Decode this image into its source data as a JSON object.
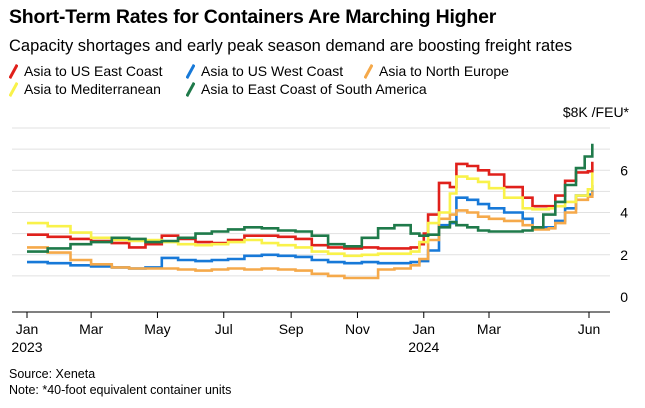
{
  "header": {
    "title": "Short-Term Rates for Containers Are Marching Higher",
    "subtitle": "Capacity shortages and early peak season demand are boosting freight rates"
  },
  "footer": {
    "source": "Source: Xeneta",
    "note": "Note: *40-foot equivalent container units"
  },
  "chart_data": {
    "type": "line",
    "unit_label": "$8K /FEU*",
    "x_ticks": [
      {
        "date": "2023-01-01",
        "label": "Jan",
        "year": "2023"
      },
      {
        "date": "2023-03-01",
        "label": "Mar",
        "year": ""
      },
      {
        "date": "2023-05-01",
        "label": "May",
        "year": ""
      },
      {
        "date": "2023-07-01",
        "label": "Jul",
        "year": ""
      },
      {
        "date": "2023-09-01",
        "label": "Sep",
        "year": ""
      },
      {
        "date": "2023-11-01",
        "label": "Nov",
        "year": ""
      },
      {
        "date": "2024-01-01",
        "label": "Jan",
        "year": "2024"
      },
      {
        "date": "2024-03-01",
        "label": "Mar",
        "year": ""
      },
      {
        "date": "2024-06-01",
        "label": "Jun",
        "year": ""
      }
    ],
    "y_ticks": [
      0,
      2,
      4,
      6
    ],
    "ylim": [
      0,
      8
    ],
    "xlim": [
      "2023-01-01",
      "2024-06-15"
    ],
    "y_axis_side": "right",
    "grid": "horizontal",
    "legend_placement": "top-left",
    "series": [
      {
        "name": "Asia to US East Coast",
        "color": "#e0201b",
        "points": [
          [
            "2023-01-01",
            2.95
          ],
          [
            "2023-01-20",
            2.85
          ],
          [
            "2023-02-10",
            2.75
          ],
          [
            "2023-03-01",
            2.65
          ],
          [
            "2023-03-20",
            2.55
          ],
          [
            "2023-04-05",
            2.35
          ],
          [
            "2023-04-20",
            2.5
          ],
          [
            "2023-05-05",
            2.9
          ],
          [
            "2023-05-20",
            2.75
          ],
          [
            "2023-06-05",
            2.6
          ],
          [
            "2023-06-20",
            2.55
          ],
          [
            "2023-07-05",
            2.7
          ],
          [
            "2023-07-20",
            2.9
          ],
          [
            "2023-08-05",
            2.9
          ],
          [
            "2023-08-20",
            2.85
          ],
          [
            "2023-09-05",
            2.75
          ],
          [
            "2023-09-20",
            2.45
          ],
          [
            "2023-10-05",
            2.35
          ],
          [
            "2023-10-20",
            2.3
          ],
          [
            "2023-11-05",
            2.35
          ],
          [
            "2023-11-20",
            2.3
          ],
          [
            "2023-12-05",
            2.3
          ],
          [
            "2023-12-20",
            2.35
          ],
          [
            "2023-12-28",
            2.5
          ],
          [
            "2024-01-01",
            3.0
          ],
          [
            "2024-01-05",
            3.9
          ],
          [
            "2024-01-15",
            5.4
          ],
          [
            "2024-01-25",
            5.2
          ],
          [
            "2024-01-31",
            6.3
          ],
          [
            "2024-02-10",
            6.2
          ],
          [
            "2024-02-20",
            6.0
          ],
          [
            "2024-03-01",
            5.8
          ],
          [
            "2024-03-15",
            5.2
          ],
          [
            "2024-04-01",
            4.7
          ],
          [
            "2024-04-10",
            4.3
          ],
          [
            "2024-04-25",
            4.3
          ],
          [
            "2024-05-01",
            4.8
          ],
          [
            "2024-05-10",
            5.5
          ],
          [
            "2024-05-20",
            5.9
          ],
          [
            "2024-05-31",
            5.95
          ],
          [
            "2024-06-04",
            6.4
          ]
        ]
      },
      {
        "name": "Asia to US West Coast",
        "color": "#1779d8",
        "points": [
          [
            "2023-01-01",
            1.65
          ],
          [
            "2023-01-20",
            1.6
          ],
          [
            "2023-02-10",
            1.5
          ],
          [
            "2023-03-01",
            1.45
          ],
          [
            "2023-03-20",
            1.4
          ],
          [
            "2023-04-05",
            1.35
          ],
          [
            "2023-04-20",
            1.4
          ],
          [
            "2023-05-05",
            1.85
          ],
          [
            "2023-05-20",
            1.75
          ],
          [
            "2023-06-05",
            1.7
          ],
          [
            "2023-06-20",
            1.75
          ],
          [
            "2023-07-05",
            1.8
          ],
          [
            "2023-07-20",
            1.95
          ],
          [
            "2023-08-05",
            2.0
          ],
          [
            "2023-08-20",
            1.95
          ],
          [
            "2023-09-05",
            1.9
          ],
          [
            "2023-09-20",
            1.75
          ],
          [
            "2023-10-05",
            1.65
          ],
          [
            "2023-10-20",
            1.6
          ],
          [
            "2023-11-05",
            1.65
          ],
          [
            "2023-11-20",
            1.6
          ],
          [
            "2023-12-05",
            1.6
          ],
          [
            "2023-12-20",
            1.65
          ],
          [
            "2023-12-28",
            1.7
          ],
          [
            "2024-01-05",
            2.2
          ],
          [
            "2024-01-15",
            3.4
          ],
          [
            "2024-01-25",
            3.5
          ],
          [
            "2024-01-31",
            4.7
          ],
          [
            "2024-02-10",
            4.6
          ],
          [
            "2024-02-20",
            4.4
          ],
          [
            "2024-03-01",
            4.2
          ],
          [
            "2024-03-15",
            4.0
          ],
          [
            "2024-04-01",
            3.7
          ],
          [
            "2024-04-10",
            3.3
          ],
          [
            "2024-04-25",
            3.3
          ],
          [
            "2024-05-01",
            3.6
          ],
          [
            "2024-05-10",
            4.2
          ],
          [
            "2024-05-20",
            4.8
          ],
          [
            "2024-05-31",
            4.85
          ],
          [
            "2024-06-04",
            5.3
          ]
        ]
      },
      {
        "name": "Asia to North Europe",
        "color": "#f5a94a",
        "points": [
          [
            "2023-01-01",
            2.35
          ],
          [
            "2023-01-20",
            2.1
          ],
          [
            "2023-02-10",
            1.75
          ],
          [
            "2023-03-01",
            1.55
          ],
          [
            "2023-03-20",
            1.4
          ],
          [
            "2023-04-05",
            1.35
          ],
          [
            "2023-04-20",
            1.35
          ],
          [
            "2023-05-05",
            1.35
          ],
          [
            "2023-05-20",
            1.3
          ],
          [
            "2023-06-05",
            1.25
          ],
          [
            "2023-06-20",
            1.3
          ],
          [
            "2023-07-05",
            1.35
          ],
          [
            "2023-07-20",
            1.3
          ],
          [
            "2023-08-05",
            1.35
          ],
          [
            "2023-08-20",
            1.3
          ],
          [
            "2023-09-05",
            1.25
          ],
          [
            "2023-09-20",
            1.1
          ],
          [
            "2023-10-05",
            1.0
          ],
          [
            "2023-10-20",
            0.9
          ],
          [
            "2023-11-05",
            0.9
          ],
          [
            "2023-11-20",
            1.3
          ],
          [
            "2023-12-05",
            1.35
          ],
          [
            "2023-12-20",
            1.5
          ],
          [
            "2023-12-28",
            1.8
          ],
          [
            "2024-01-05",
            2.7
          ],
          [
            "2024-01-15",
            3.7
          ],
          [
            "2024-01-25",
            3.9
          ],
          [
            "2024-01-31",
            4.1
          ],
          [
            "2024-02-10",
            4.0
          ],
          [
            "2024-02-20",
            3.8
          ],
          [
            "2024-03-01",
            3.7
          ],
          [
            "2024-03-15",
            3.6
          ],
          [
            "2024-04-01",
            3.4
          ],
          [
            "2024-04-10",
            3.2
          ],
          [
            "2024-04-25",
            3.25
          ],
          [
            "2024-05-01",
            3.5
          ],
          [
            "2024-05-10",
            4.0
          ],
          [
            "2024-05-20",
            4.6
          ],
          [
            "2024-05-31",
            4.75
          ],
          [
            "2024-06-04",
            5.0
          ]
        ]
      },
      {
        "name": "Asia to Mediterranean",
        "color": "#f9f24a",
        "points": [
          [
            "2023-01-01",
            3.5
          ],
          [
            "2023-01-20",
            3.35
          ],
          [
            "2023-02-10",
            3.05
          ],
          [
            "2023-03-01",
            2.8
          ],
          [
            "2023-03-20",
            2.7
          ],
          [
            "2023-04-05",
            2.65
          ],
          [
            "2023-04-20",
            2.7
          ],
          [
            "2023-05-05",
            2.6
          ],
          [
            "2023-05-20",
            2.5
          ],
          [
            "2023-06-05",
            2.45
          ],
          [
            "2023-06-20",
            2.5
          ],
          [
            "2023-07-05",
            2.6
          ],
          [
            "2023-07-20",
            2.7
          ],
          [
            "2023-08-05",
            2.55
          ],
          [
            "2023-08-20",
            2.45
          ],
          [
            "2023-09-05",
            2.35
          ],
          [
            "2023-09-20",
            2.15
          ],
          [
            "2023-10-05",
            2.05
          ],
          [
            "2023-10-20",
            1.95
          ],
          [
            "2023-11-05",
            2.0
          ],
          [
            "2023-11-20",
            2.05
          ],
          [
            "2023-12-05",
            2.05
          ],
          [
            "2023-12-20",
            2.15
          ],
          [
            "2023-12-28",
            2.6
          ],
          [
            "2024-01-05",
            3.5
          ],
          [
            "2024-01-15",
            4.0
          ],
          [
            "2024-01-25",
            4.9
          ],
          [
            "2024-01-31",
            5.7
          ],
          [
            "2024-02-10",
            5.6
          ],
          [
            "2024-02-20",
            5.45
          ],
          [
            "2024-03-01",
            5.15
          ],
          [
            "2024-03-15",
            4.7
          ],
          [
            "2024-04-01",
            4.2
          ],
          [
            "2024-04-10",
            4.15
          ],
          [
            "2024-04-25",
            4.2
          ],
          [
            "2024-05-01",
            4.3
          ],
          [
            "2024-05-10",
            4.5
          ],
          [
            "2024-05-20",
            4.8
          ],
          [
            "2024-05-31",
            5.1
          ],
          [
            "2024-06-04",
            5.9
          ]
        ]
      },
      {
        "name": "Asia to East Coast of South America",
        "color": "#1f7a4a",
        "points": [
          [
            "2023-01-01",
            2.15
          ],
          [
            "2023-01-20",
            2.3
          ],
          [
            "2023-02-10",
            2.5
          ],
          [
            "2023-03-01",
            2.6
          ],
          [
            "2023-03-20",
            2.8
          ],
          [
            "2023-04-05",
            2.75
          ],
          [
            "2023-04-20",
            2.6
          ],
          [
            "2023-05-05",
            2.65
          ],
          [
            "2023-05-20",
            2.8
          ],
          [
            "2023-06-05",
            3.0
          ],
          [
            "2023-06-20",
            3.1
          ],
          [
            "2023-07-05",
            3.2
          ],
          [
            "2023-07-20",
            3.3
          ],
          [
            "2023-08-05",
            3.25
          ],
          [
            "2023-08-20",
            3.15
          ],
          [
            "2023-09-05",
            3.1
          ],
          [
            "2023-09-20",
            2.9
          ],
          [
            "2023-10-05",
            2.5
          ],
          [
            "2023-10-20",
            2.4
          ],
          [
            "2023-11-05",
            2.8
          ],
          [
            "2023-11-20",
            3.25
          ],
          [
            "2023-12-05",
            3.4
          ],
          [
            "2023-12-20",
            3.0
          ],
          [
            "2023-12-28",
            2.9
          ],
          [
            "2024-01-05",
            2.95
          ],
          [
            "2024-01-15",
            3.3
          ],
          [
            "2024-01-25",
            3.55
          ],
          [
            "2024-01-31",
            3.4
          ],
          [
            "2024-02-10",
            3.3
          ],
          [
            "2024-02-20",
            3.15
          ],
          [
            "2024-03-01",
            3.1
          ],
          [
            "2024-03-15",
            3.1
          ],
          [
            "2024-04-01",
            3.15
          ],
          [
            "2024-04-10",
            3.3
          ],
          [
            "2024-04-20",
            3.9
          ],
          [
            "2024-05-01",
            4.5
          ],
          [
            "2024-05-10",
            5.3
          ],
          [
            "2024-05-20",
            6.1
          ],
          [
            "2024-05-28",
            6.65
          ],
          [
            "2024-06-04",
            7.25
          ]
        ]
      }
    ]
  }
}
